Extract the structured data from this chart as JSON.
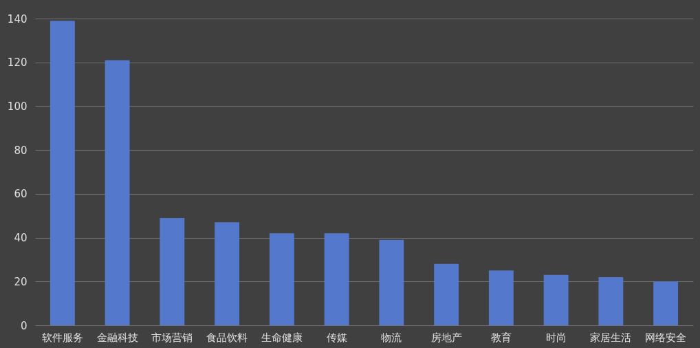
{
  "chart_data": {
    "type": "bar",
    "categories": [
      "软件服务",
      "金融科技",
      "市场营销",
      "食品饮料",
      "生命健康",
      "传媒",
      "物流",
      "房地产",
      "教育",
      "时尚",
      "家居生活",
      "网络安全"
    ],
    "values": [
      139,
      121,
      49,
      47,
      42,
      42,
      39,
      28,
      25,
      23,
      22,
      20
    ],
    "color": "#5479cc",
    "ylim": [
      0,
      140
    ],
    "yticks": [
      0,
      20,
      40,
      60,
      80,
      100,
      120,
      140
    ],
    "grid": "y"
  }
}
